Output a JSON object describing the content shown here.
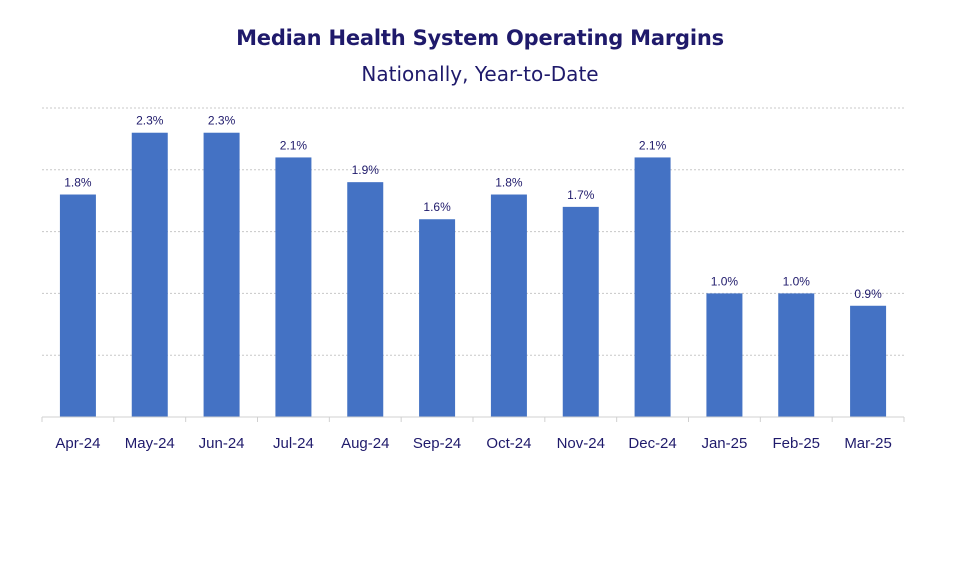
{
  "chart_data": {
    "type": "bar",
    "title": "Median Health System Operating Margins",
    "subtitle": "Nationally, Year-to-Date",
    "categories": [
      "Apr-24",
      "May-24",
      "Jun-24",
      "Jul-24",
      "Aug-24",
      "Sep-24",
      "Oct-24",
      "Nov-24",
      "Dec-24",
      "Jan-25",
      "Feb-25",
      "Mar-25"
    ],
    "values": [
      1.8,
      2.3,
      2.3,
      2.1,
      1.9,
      1.6,
      1.8,
      1.7,
      2.1,
      1.0,
      1.0,
      0.9
    ],
    "value_labels": [
      "1.8%",
      "2.3%",
      "2.3%",
      "2.1%",
      "1.9%",
      "1.6%",
      "1.8%",
      "1.7%",
      "2.1%",
      "1.0%",
      "1.0%",
      "0.9%"
    ],
    "ylim": [
      0,
      2.5
    ],
    "gridlines": [
      0.5,
      1.0,
      1.5,
      2.0,
      2.5
    ],
    "grid": true,
    "legend": "none",
    "bar_color": "#4472c4",
    "text_color": "#1f1a6b"
  }
}
